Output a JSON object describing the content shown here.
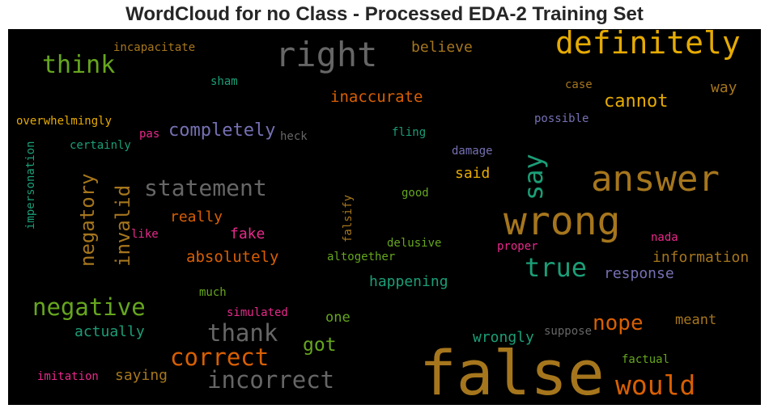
{
  "chart_data": {
    "type": "wordcloud",
    "title": "WordCloud for no Class - Processed EDA-2 Training Set",
    "background": "#000000",
    "palette": "Dark2",
    "words": [
      {
        "text": "false",
        "color": "#a6761d"
      },
      {
        "text": "wrong",
        "color": "#a6761d"
      },
      {
        "text": "answer",
        "color": "#a6761d"
      },
      {
        "text": "definitely",
        "color": "#e6ab02"
      },
      {
        "text": "right",
        "color": "#666666"
      },
      {
        "text": "think",
        "color": "#66a61e"
      },
      {
        "text": "say",
        "color": "#1b9e77"
      },
      {
        "text": "statement",
        "color": "#666666"
      },
      {
        "text": "correct",
        "color": "#d95f02"
      },
      {
        "text": "incorrect",
        "color": "#666666"
      },
      {
        "text": "would",
        "color": "#d95f02"
      },
      {
        "text": "negative",
        "color": "#66a61e"
      },
      {
        "text": "thank",
        "color": "#666666"
      },
      {
        "text": "true",
        "color": "#1b9e77"
      },
      {
        "text": "negatory",
        "color": "#a6761d"
      },
      {
        "text": "invalid",
        "color": "#a6761d"
      },
      {
        "text": "completely",
        "color": "#7570b3"
      },
      {
        "text": "nope",
        "color": "#d95f02"
      },
      {
        "text": "cannot",
        "color": "#e6ab02"
      },
      {
        "text": "got",
        "color": "#66a61e"
      },
      {
        "text": "inaccurate",
        "color": "#d95f02"
      },
      {
        "text": "absolutely",
        "color": "#d95f02"
      },
      {
        "text": "information",
        "color": "#a6761d"
      },
      {
        "text": "happening",
        "color": "#1b9e77"
      },
      {
        "text": "response",
        "color": "#7570b3"
      },
      {
        "text": "really",
        "color": "#d95f02"
      },
      {
        "text": "fake",
        "color": "#e7298a"
      },
      {
        "text": "believe",
        "color": "#a6761d"
      },
      {
        "text": "way",
        "color": "#a6761d"
      },
      {
        "text": "said",
        "color": "#e6ab02"
      },
      {
        "text": "actually",
        "color": "#1b9e77"
      },
      {
        "text": "saying",
        "color": "#a6761d"
      },
      {
        "text": "wrongly",
        "color": "#1b9e77"
      },
      {
        "text": "meant",
        "color": "#a6761d"
      },
      {
        "text": "one",
        "color": "#66a61e"
      },
      {
        "text": "incapacitate",
        "color": "#a6761d"
      },
      {
        "text": "sham",
        "color": "#1b9e77"
      },
      {
        "text": "case",
        "color": "#a6761d"
      },
      {
        "text": "overwhelmingly",
        "color": "#e6ab02"
      },
      {
        "text": "pas",
        "color": "#e7298a"
      },
      {
        "text": "heck",
        "color": "#666666"
      },
      {
        "text": "fling",
        "color": "#1b9e77"
      },
      {
        "text": "possible",
        "color": "#7570b3"
      },
      {
        "text": "certainly",
        "color": "#1b9e77"
      },
      {
        "text": "damage",
        "color": "#7570b3"
      },
      {
        "text": "impersonation",
        "color": "#1b9e77"
      },
      {
        "text": "good",
        "color": "#66a61e"
      },
      {
        "text": "falsify",
        "color": "#a6761d"
      },
      {
        "text": "like",
        "color": "#e7298a"
      },
      {
        "text": "delusive",
        "color": "#66a61e"
      },
      {
        "text": "altogether",
        "color": "#66a61e"
      },
      {
        "text": "proper",
        "color": "#e7298a"
      },
      {
        "text": "nada",
        "color": "#e7298a"
      },
      {
        "text": "much",
        "color": "#66a61e"
      },
      {
        "text": "simulated",
        "color": "#e7298a"
      },
      {
        "text": "suppose",
        "color": "#666666"
      },
      {
        "text": "factual",
        "color": "#66a61e"
      },
      {
        "text": "imitation",
        "color": "#e7298a"
      }
    ]
  }
}
